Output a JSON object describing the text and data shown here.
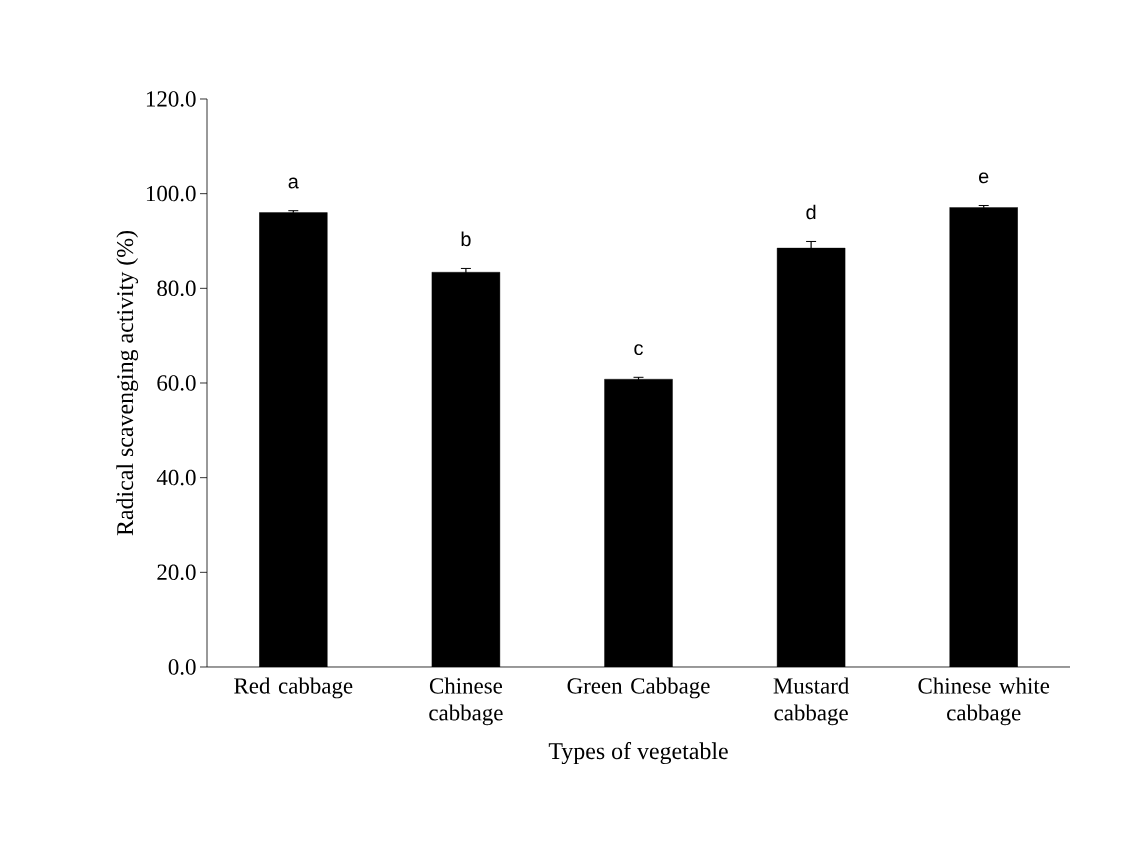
{
  "chart_data": {
    "type": "bar",
    "categories": [
      "Red cabbage",
      "Chinese cabbage",
      "Green Cabbage",
      "Mustard cabbage",
      "Chinese white cabbage"
    ],
    "values": [
      96.0,
      83.4,
      60.8,
      88.5,
      97.1
    ],
    "errors": [
      0.4,
      0.8,
      0.4,
      1.4,
      0.4
    ],
    "color": "#000000",
    "xlabel": "Types of vegetable",
    "ylabel": "Radical scavenging activity (%)",
    "ylim": [
      0,
      120
    ],
    "yticks": [
      {
        "value": 0,
        "label": "0.0"
      },
      {
        "value": 20,
        "label": "20.0"
      },
      {
        "value": 40,
        "label": "40.0"
      },
      {
        "value": 60,
        "label": "60.0"
      },
      {
        "value": 80,
        "label": "80.0"
      },
      {
        "value": 100,
        "label": "100.0"
      },
      {
        "value": 120,
        "label": "120.0"
      }
    ],
    "annotations": [
      "a",
      "b",
      "c",
      "d",
      "e"
    ],
    "grid": false
  }
}
